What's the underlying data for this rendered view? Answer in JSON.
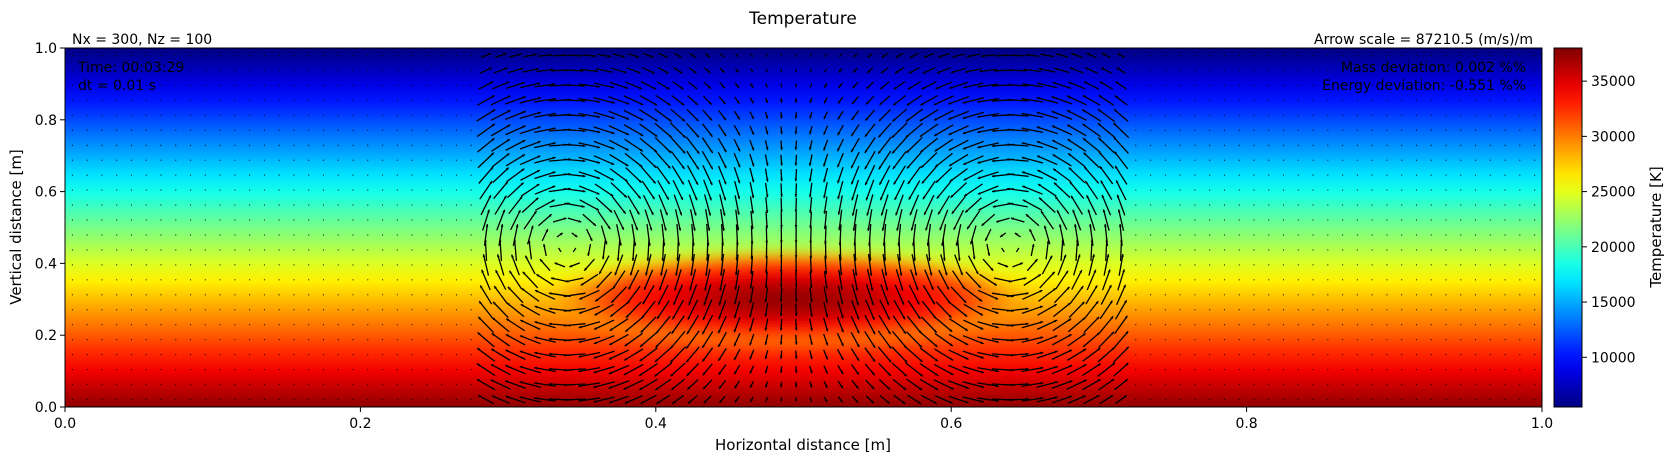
{
  "chart_data": {
    "type": "heatmap",
    "title": "Temperature",
    "xlabel": "Horizontal distance [m]",
    "ylabel": "Vertical distance [m]",
    "xlim": [
      0.0,
      1.0
    ],
    "ylim": [
      0.0,
      1.0
    ],
    "x_ticks": [
      0.0,
      0.2,
      0.4,
      0.6,
      0.8,
      1.0
    ],
    "y_ticks": [
      0.0,
      0.2,
      0.4,
      0.6,
      0.8,
      1.0
    ],
    "x_tick_labels": [
      "0.0",
      "0.2",
      "0.4",
      "0.6",
      "0.8",
      "1.0"
    ],
    "y_tick_labels": [
      "0.0",
      "0.2",
      "0.4",
      "0.6",
      "0.8",
      "1.0"
    ],
    "grid": false,
    "colormap": "jet",
    "colorbar": {
      "label": "Temperature [K]",
      "range": [
        5500,
        38000
      ],
      "ticks": [
        10000,
        15000,
        20000,
        25000,
        30000,
        35000
      ],
      "tick_labels": [
        "10000",
        "15000",
        "20000",
        "25000",
        "30000",
        "35000"
      ]
    },
    "field": {
      "background": {
        "top_value": 5500,
        "bottom_value": 37500
      },
      "thermal": {
        "center_x": 0.49,
        "center_y": 0.3,
        "radius_x": 0.17,
        "radius_y": 0.14,
        "peak_value": 37500
      }
    },
    "velocity_field": {
      "type": "quiver",
      "vortex_centers": [
        {
          "x": 0.34,
          "y": 0.45,
          "rotation": "clockwise"
        },
        {
          "x": 0.64,
          "y": 0.45,
          "rotation": "counter-clockwise"
        }
      ],
      "region_x": [
        0.28,
        0.72
      ]
    },
    "annotations": {
      "grid_info": "Nx = 300, Nz = 100",
      "arrow_scale": "Arrow scale = 87210.5 (m/s)/m",
      "time": "Time: 00:03:29",
      "dt": "dt = 0.01 s",
      "mass_deviation": "Mass deviation: 0.002 %%",
      "energy_deviation": "Energy deviation: -0.551 %%"
    }
  }
}
